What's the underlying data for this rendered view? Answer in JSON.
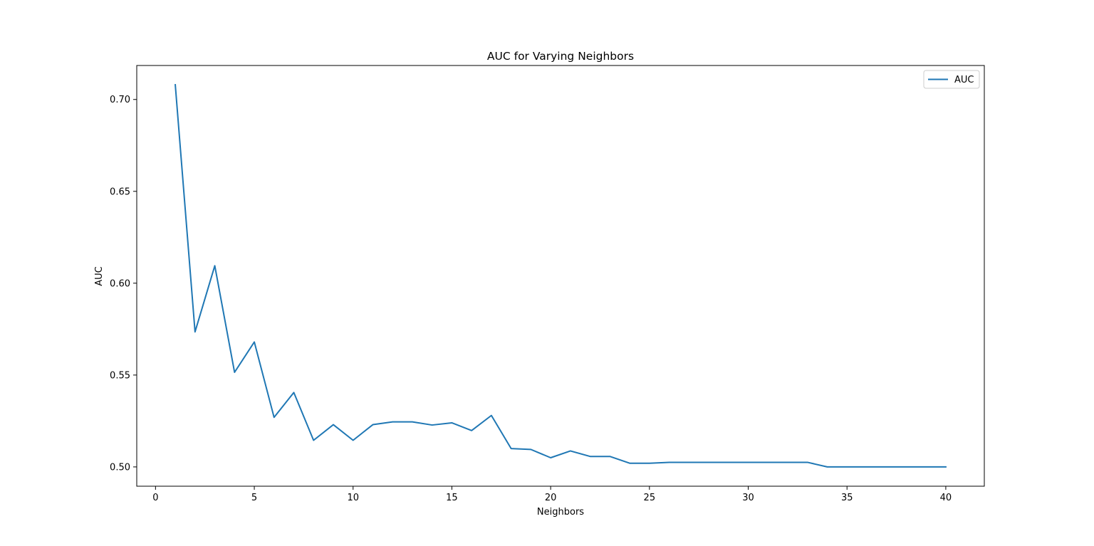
{
  "chart_data": {
    "type": "line",
    "title": "AUC for Varying Neighbors",
    "xlabel": "Neighbors",
    "ylabel": "AUC",
    "xlim": [
      -0.95,
      41.95
    ],
    "ylim": [
      0.4895,
      0.7185
    ],
    "xticks": [
      0,
      5,
      10,
      15,
      20,
      25,
      30,
      35,
      40
    ],
    "xtick_labels": [
      "0",
      "5",
      "10",
      "15",
      "20",
      "25",
      "30",
      "35",
      "40"
    ],
    "yticks": [
      0.5,
      0.55,
      0.6,
      0.65,
      0.7
    ],
    "ytick_labels": [
      "0.50",
      "0.55",
      "0.60",
      "0.65",
      "0.70"
    ],
    "grid": false,
    "legend": "upper right",
    "series": [
      {
        "name": "AUC",
        "color": "#1f77b4",
        "x": [
          1,
          2,
          3,
          4,
          5,
          6,
          7,
          8,
          9,
          10,
          11,
          12,
          13,
          14,
          15,
          16,
          17,
          18,
          19,
          20,
          21,
          22,
          23,
          24,
          25,
          26,
          27,
          28,
          29,
          30,
          31,
          32,
          33,
          34,
          35,
          36,
          37,
          38,
          39,
          40
        ],
        "y": [
          0.708,
          0.5735,
          0.6095,
          0.5515,
          0.568,
          0.527,
          0.5405,
          0.5145,
          0.523,
          0.5145,
          0.523,
          0.5245,
          0.5245,
          0.5228,
          0.524,
          0.5198,
          0.528,
          0.51,
          0.5095,
          0.505,
          0.5087,
          0.5057,
          0.5057,
          0.502,
          0.502,
          0.5025,
          0.5025,
          0.5025,
          0.5025,
          0.5025,
          0.5025,
          0.5025,
          0.5025,
          0.5,
          0.5,
          0.5,
          0.5,
          0.5,
          0.5,
          0.5
        ]
      }
    ]
  }
}
